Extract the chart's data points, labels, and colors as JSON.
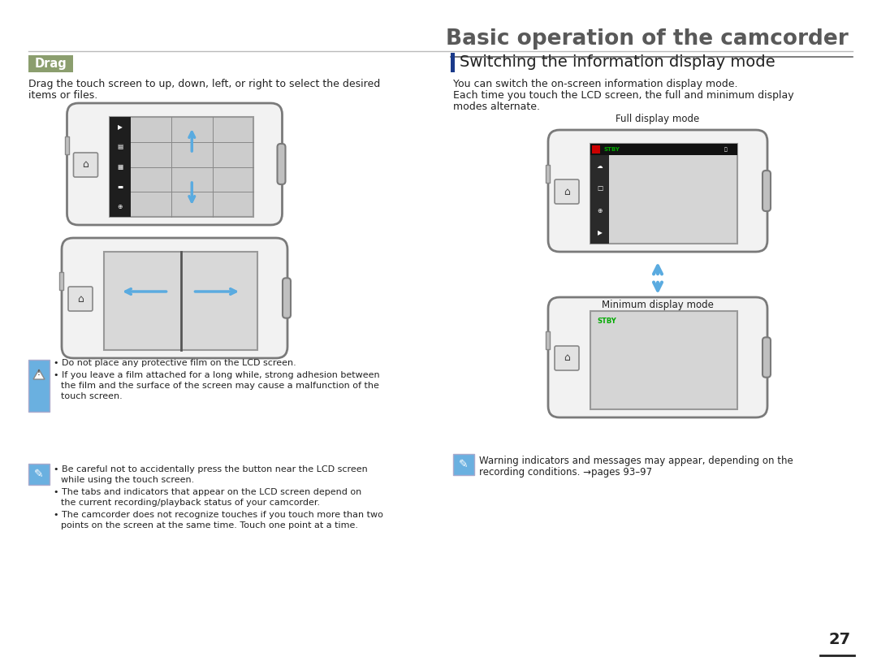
{
  "title": "Basic operation of the camcorder",
  "page_number": "27",
  "bg_color": "#ffffff",
  "title_color": "#595959",
  "title_fontsize": 19,
  "section1_heading": "Drag",
  "section1_heading_bg": "#8b9e6e",
  "section1_heading_color": "#ffffff",
  "section1_text1": "Drag the touch screen to up, down, left, or right to select the desired",
  "section1_text2": "items or files.",
  "section2_heading": "Switching the information display mode",
  "section2_text1": "You can switch the on-screen information display mode.",
  "section2_text2": "Each time you touch the LCD screen, the full and minimum display",
  "section2_text3": "modes alternate.",
  "full_display_label": "Full display mode",
  "min_display_label": "Minimum display mode",
  "note1_text1": "Do not place any protective film on the LCD screen.",
  "note1_text2": "If you leave a film attached for a long while, strong adhesion between",
  "note1_text3": "the film and the surface of the screen may cause a malfunction of the",
  "note1_text4": "touch screen.",
  "note2_text1": "Be careful not to accidentally press the button near the LCD screen",
  "note2_text2": "while using the touch screen.",
  "note2_text3": "The tabs and indicators that appear on the LCD screen depend on",
  "note2_text4": "the current recording/playback status of your camcorder.",
  "note2_text5": "The camcorder does not recognize touches if you touch more than two",
  "note2_text6": "points on the screen at the same time. Touch one point at a time.",
  "note3_text1": "Warning indicators and messages may appear, depending on the",
  "note3_text2": "recording conditions. →pages 93–97",
  "device_border": "#7a7a7a",
  "device_face": "#f2f2f2",
  "device_face2": "#e8e8e8",
  "screen_bg": "#cccccc",
  "screen_bg2": "#d5d5d5",
  "sidebar_bg": "#1e1e1e",
  "sidebar_bg2": "#2a2a2a",
  "notch_color": "#c0c0c0",
  "btn_face": "#e2e2e2",
  "btn_border": "#888888",
  "arrow_color": "#5aabe0",
  "arrow_fill": "#7bbfe8",
  "stby_green": "#00aa00",
  "red_dot": "#cc0000",
  "icon_bg_blue": "#6ab0e0",
  "icon_bg_warn": "#6ab0e0",
  "text_dark": "#222222",
  "text_mid": "#444444",
  "divider_dark": "#666666",
  "divider_light": "#bbbbbb",
  "blue_bar": "#1a3a8a"
}
